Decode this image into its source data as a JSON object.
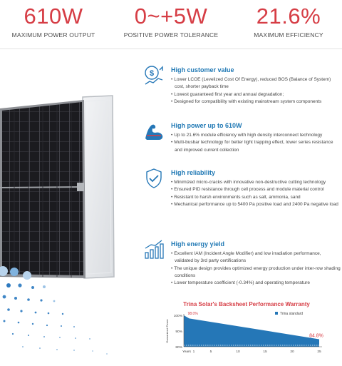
{
  "stats": [
    {
      "value": "610W",
      "label": "MAXIMUM POWER OUTPUT"
    },
    {
      "value": "0~+5W",
      "label": "POSITIVE POWER TOLERANCE"
    },
    {
      "value": "21.6%",
      "label": "MAXIMUM EFFICIENCY"
    }
  ],
  "features": [
    {
      "title": "High customer value",
      "icon": "dollar-chart-icon",
      "bullets": [
        "Lower LCOE (Levelized Cost Of Energy), reduced BOS (Balance of System) cost, shorter payback time",
        "Lowest guaranteed first year and annual degradation;",
        "Designed for compatibility with existing mainstream system components"
      ]
    },
    {
      "title": "High power up to 610W",
      "icon": "flexed-arm-icon",
      "bullets": [
        "Up to 21.6% module efficiency with high density interconnect technology",
        "Multi-busbar technology for better light trapping effect, lower series resistance and improved current collection"
      ]
    },
    {
      "title": "High reliability",
      "icon": "shield-handshake-icon",
      "bullets": [
        "Minimized micro-cracks with innovative non-destructive cutting technology",
        "Ensured PID resistance through cell process and module material control",
        "Resistant to harsh environments such as salt, ammonia, sand",
        "Mechanical performance up to 5400 Pa positive load and 2400 Pa negative load"
      ]
    },
    {
      "title": "High energy yield",
      "icon": "bar-growth-icon",
      "bullets": [
        "Excellent IAM (Incident Angle Modifier) and low irradiation performance, validated by 3rd party certifications",
        "The unique design provides optimized energy production under inter-row shading conditions",
        "Lower temperature coefficient (-0.34%) and operating temperature"
      ]
    }
  ],
  "warranty": {
    "title": "Trina Solar's Backsheet Performance Warranty"
  },
  "chart_data": {
    "type": "area",
    "title": "Trina Solar's Backsheet Performance Warranty",
    "xlabel": "Years",
    "ylabel": "Guaranteed Power",
    "x_ticks": [
      "1",
      "5",
      "10",
      "15",
      "20",
      "25"
    ],
    "y_ticks": [
      "100%",
      "90%",
      "80%"
    ],
    "xlim": [
      0,
      25
    ],
    "ylim": [
      80,
      100
    ],
    "series": [
      {
        "name": "Trina standard",
        "x": [
          0,
          1,
          25
        ],
        "y": [
          100,
          98.0,
          84.8
        ],
        "color": "#2577b7"
      }
    ],
    "annotations": [
      "98.0%",
      "84.8%"
    ],
    "legend": "top-right",
    "colors": {
      "area": "#2577b7",
      "annotation": "#d63d45"
    }
  }
}
